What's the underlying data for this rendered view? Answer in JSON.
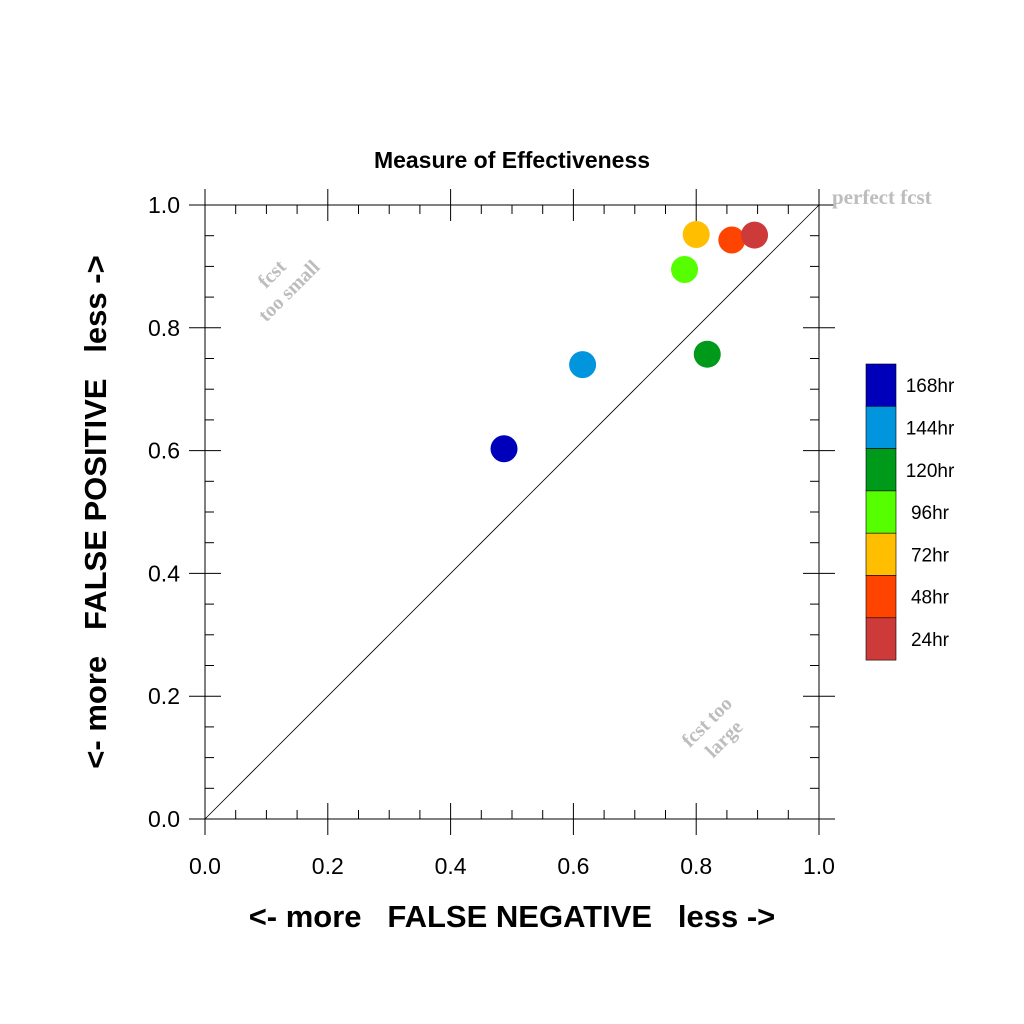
{
  "chart_data": {
    "type": "scatter",
    "title": "Measure of Effectiveness",
    "xlabel": "<- more   FALSE NEGATIVE   less ->",
    "ylabel": "<- more   FALSE POSITIVE   less ->",
    "xlim": [
      0.0,
      1.0
    ],
    "ylim": [
      0.0,
      1.0
    ],
    "x_ticks": [
      "0.0",
      "0.2",
      "0.4",
      "0.6",
      "0.8",
      "1.0"
    ],
    "y_ticks": [
      "0.0",
      "0.2",
      "0.4",
      "0.6",
      "0.8",
      "1.0"
    ],
    "grid": false,
    "reference_line": {
      "from": [
        0.0,
        0.0
      ],
      "to": [
        1.0,
        1.0
      ],
      "label": "perfect fcst"
    },
    "annotations": {
      "upper_left": [
        "fcst",
        "too small"
      ],
      "lower_right": [
        "fcst too",
        "large"
      ]
    },
    "legend_position": "right",
    "series": [
      {
        "name": "168hr",
        "x": 0.487,
        "y": 0.603,
        "color": "#0000bb"
      },
      {
        "name": "144hr",
        "x": 0.615,
        "y": 0.74,
        "color": "#0095dd"
      },
      {
        "name": "120hr",
        "x": 0.818,
        "y": 0.757,
        "color": "#009a1a"
      },
      {
        "name": "96hr",
        "x": 0.781,
        "y": 0.895,
        "color": "#55ff00"
      },
      {
        "name": "72hr",
        "x": 0.8,
        "y": 0.952,
        "color": "#ffbf00"
      },
      {
        "name": "48hr",
        "x": 0.858,
        "y": 0.943,
        "color": "#ff4400"
      },
      {
        "name": "24hr",
        "x": 0.895,
        "y": 0.951,
        "color": "#cc3a3a"
      }
    ]
  }
}
